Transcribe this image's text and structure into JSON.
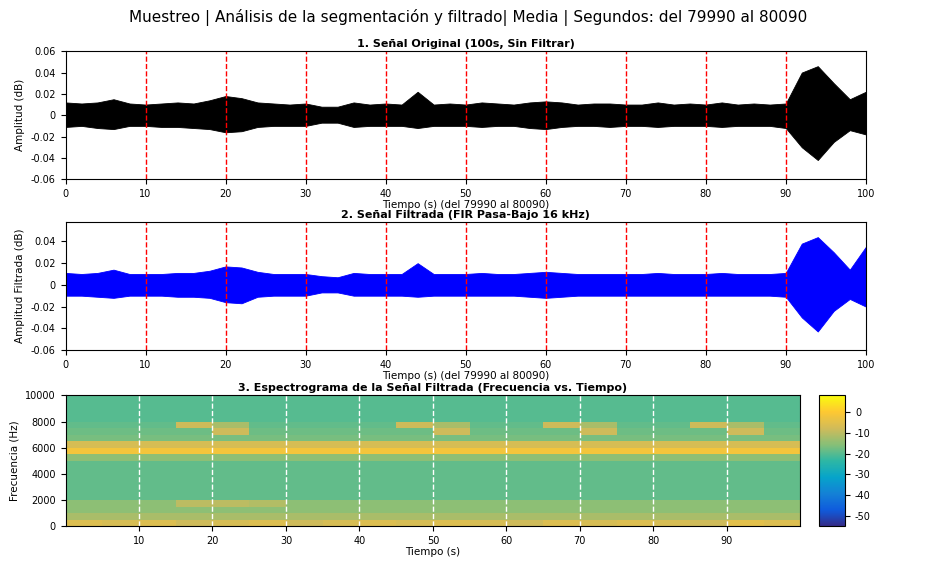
{
  "title": "Muestreo | Análisis de la segmentación y filtrado| Media | Segundos: del 79990 al 80090",
  "chart_data": [
    {
      "type": "area",
      "title": "1. Señal Original (100s, Sin Filtrar)",
      "x_label": "Tiempo (s) (del 79990 al 80090)",
      "y_label": "Amplitud (dB)",
      "color": "#000000",
      "x": [
        0,
        2,
        4,
        6,
        8,
        10,
        12,
        14,
        16,
        18,
        20,
        22,
        24,
        26,
        28,
        30,
        32,
        34,
        36,
        38,
        40,
        42,
        44,
        46,
        48,
        50,
        52,
        54,
        56,
        58,
        60,
        62,
        64,
        66,
        68,
        70,
        72,
        74,
        76,
        78,
        80,
        82,
        84,
        86,
        88,
        90,
        92,
        94,
        96,
        98,
        100
      ],
      "upper": [
        0.012,
        0.011,
        0.012,
        0.015,
        0.011,
        0.01,
        0.011,
        0.012,
        0.011,
        0.014,
        0.018,
        0.016,
        0.012,
        0.011,
        0.01,
        0.011,
        0.008,
        0.008,
        0.012,
        0.01,
        0.011,
        0.01,
        0.022,
        0.01,
        0.011,
        0.01,
        0.012,
        0.011,
        0.01,
        0.012,
        0.013,
        0.012,
        0.01,
        0.011,
        0.011,
        0.01,
        0.01,
        0.012,
        0.01,
        0.011,
        0.01,
        0.012,
        0.01,
        0.011,
        0.01,
        0.011,
        0.04,
        0.046,
        0.03,
        0.015,
        0.022
      ],
      "lower": [
        -0.011,
        -0.01,
        -0.012,
        -0.013,
        -0.01,
        -0.01,
        -0.011,
        -0.011,
        -0.012,
        -0.013,
        -0.016,
        -0.015,
        -0.011,
        -0.01,
        -0.01,
        -0.01,
        -0.007,
        -0.007,
        -0.011,
        -0.01,
        -0.01,
        -0.01,
        -0.012,
        -0.01,
        -0.01,
        -0.01,
        -0.011,
        -0.01,
        -0.01,
        -0.012,
        -0.013,
        -0.011,
        -0.01,
        -0.01,
        -0.011,
        -0.01,
        -0.01,
        -0.011,
        -0.01,
        -0.01,
        -0.01,
        -0.011,
        -0.01,
        -0.01,
        -0.01,
        -0.012,
        -0.03,
        -0.042,
        -0.025,
        -0.014,
        -0.018
      ],
      "segments": [
        10,
        20,
        30,
        40,
        50,
        60,
        70,
        80,
        90
      ],
      "xlim": [
        0,
        100
      ],
      "xticks": [
        0,
        10,
        20,
        30,
        40,
        50,
        60,
        70,
        80,
        90,
        100
      ],
      "ylim": [
        -0.06,
        0.06
      ],
      "yticks": [
        -0.06,
        -0.04,
        -0.02,
        0,
        0.02,
        0.04,
        0.06
      ]
    },
    {
      "type": "area",
      "title": "2. Señal Filtrada (FIR Pasa-Bajo 16 kHz)",
      "x_label": "Tiempo (s) (del 79990 al 80090)",
      "y_label": "Amplitud Filtrada (dB)",
      "color": "#0000ff",
      "x": [
        0,
        2,
        4,
        6,
        8,
        10,
        12,
        14,
        16,
        18,
        20,
        22,
        24,
        26,
        28,
        30,
        32,
        34,
        36,
        38,
        40,
        42,
        44,
        46,
        48,
        50,
        52,
        54,
        56,
        58,
        60,
        62,
        64,
        66,
        68,
        70,
        72,
        74,
        76,
        78,
        80,
        82,
        84,
        86,
        88,
        90,
        92,
        94,
        96,
        98,
        100
      ],
      "upper": [
        0.011,
        0.01,
        0.011,
        0.014,
        0.01,
        0.01,
        0.01,
        0.011,
        0.011,
        0.013,
        0.017,
        0.016,
        0.012,
        0.01,
        0.01,
        0.01,
        0.008,
        0.007,
        0.011,
        0.01,
        0.01,
        0.01,
        0.02,
        0.01,
        0.01,
        0.01,
        0.011,
        0.01,
        0.01,
        0.011,
        0.012,
        0.011,
        0.01,
        0.01,
        0.01,
        0.01,
        0.01,
        0.011,
        0.01,
        0.01,
        0.01,
        0.011,
        0.01,
        0.01,
        0.01,
        0.011,
        0.038,
        0.044,
        0.03,
        0.014,
        0.035
      ],
      "lower": [
        -0.01,
        -0.01,
        -0.011,
        -0.012,
        -0.01,
        -0.01,
        -0.01,
        -0.011,
        -0.011,
        -0.012,
        -0.016,
        -0.017,
        -0.011,
        -0.01,
        -0.01,
        -0.01,
        -0.007,
        -0.007,
        -0.01,
        -0.01,
        -0.01,
        -0.01,
        -0.011,
        -0.01,
        -0.01,
        -0.01,
        -0.01,
        -0.01,
        -0.01,
        -0.011,
        -0.012,
        -0.011,
        -0.01,
        -0.01,
        -0.01,
        -0.01,
        -0.01,
        -0.01,
        -0.01,
        -0.01,
        -0.01,
        -0.01,
        -0.01,
        -0.01,
        -0.01,
        -0.011,
        -0.03,
        -0.043,
        -0.024,
        -0.013,
        -0.02
      ],
      "segments": [
        10,
        20,
        30,
        40,
        50,
        60,
        70,
        80,
        90
      ],
      "xlim": [
        0,
        100
      ],
      "xticks": [
        0,
        10,
        20,
        30,
        40,
        50,
        60,
        70,
        80,
        90,
        100
      ],
      "ylim": [
        -0.06,
        0.058
      ],
      "yticks": [
        -0.06,
        -0.04,
        -0.02,
        0,
        0.02,
        0.04
      ]
    },
    {
      "type": "heatmap",
      "title": "3. Espectrograma de la Señal Filtrada (Frecuencia vs. Tiempo)",
      "x_label": "Tiempo (s)",
      "y_label": "Frecuencia (Hz)",
      "time_edges": [
        0,
        5,
        10,
        15,
        20,
        25,
        30,
        35,
        40,
        45,
        50,
        55,
        60,
        65,
        70,
        75,
        80,
        85,
        90,
        95,
        100
      ],
      "freq_edges": [
        0,
        500,
        1000,
        1500,
        2000,
        2500,
        3000,
        3500,
        4000,
        4500,
        5000,
        5500,
        6000,
        6500,
        7000,
        7500,
        8000,
        8500,
        9000,
        9500,
        10000
      ],
      "cells": [
        [
          -6,
          -7,
          -6,
          -8,
          -7,
          -6,
          -8,
          -7,
          -6,
          -7,
          -6,
          -7,
          -8,
          -6,
          -7,
          -6,
          -7,
          -8,
          -5,
          -6
        ],
        [
          -12,
          -12,
          -12,
          -12,
          -12,
          -12,
          -12,
          -12,
          -12,
          -12,
          -12,
          -12,
          -12,
          -12,
          -12,
          -12,
          -12,
          -12,
          -12,
          -12
        ],
        [
          -15,
          -15,
          -15,
          -15,
          -15,
          -15,
          -15,
          -15,
          -15,
          -15,
          -15,
          -15,
          -15,
          -15,
          -15,
          -15,
          -15,
          -15,
          -15,
          -15
        ],
        [
          -15,
          -15,
          -15,
          -10,
          -10,
          -11,
          -15,
          -15,
          -15,
          -15,
          -15,
          -15,
          -15,
          -15,
          -15,
          -15,
          -15,
          -15,
          -15,
          -15
        ],
        [
          -19,
          -19,
          -19,
          -19,
          -19,
          -19,
          -19,
          -19,
          -19,
          -19,
          -19,
          -19,
          -19,
          -19,
          -19,
          -19,
          -19,
          -19,
          -19,
          -19
        ],
        [
          -19,
          -19,
          -19,
          -19,
          -19,
          -19,
          -19,
          -19,
          -19,
          -19,
          -19,
          -19,
          -19,
          -19,
          -19,
          -19,
          -19,
          -19,
          -19,
          -19
        ],
        [
          -19,
          -19,
          -19,
          -19,
          -19,
          -19,
          -19,
          -19,
          -19,
          -19,
          -19,
          -19,
          -19,
          -19,
          -19,
          -19,
          -19,
          -19,
          -19,
          -19
        ],
        [
          -19,
          -19,
          -19,
          -19,
          -19,
          -19,
          -19,
          -19,
          -19,
          -19,
          -19,
          -19,
          -19,
          -19,
          -19,
          -19,
          -19,
          -19,
          -19,
          -19
        ],
        [
          -19,
          -19,
          -19,
          -19,
          -19,
          -19,
          -19,
          -19,
          -19,
          -19,
          -19,
          -19,
          -19,
          -19,
          -19,
          -19,
          -19,
          -19,
          -19,
          -19
        ],
        [
          -19,
          -19,
          -19,
          -19,
          -19,
          -19,
          -19,
          -19,
          -19,
          -19,
          -19,
          -19,
          -19,
          -19,
          -19,
          -19,
          -19,
          -19,
          -19,
          -19
        ],
        [
          -15,
          -15,
          -15,
          -15,
          -15,
          -15,
          -15,
          -15,
          -15,
          -15,
          -15,
          -15,
          -15,
          -15,
          -15,
          -15,
          -15,
          -15,
          -15,
          -15
        ],
        [
          -2,
          -2,
          -2,
          -2,
          -2,
          -2,
          -2,
          -2,
          -2,
          -2,
          -2,
          -2,
          -2,
          -2,
          -2,
          -2,
          -2,
          -2,
          -2,
          -2
        ],
        [
          -7,
          -7,
          -7,
          -7,
          -7,
          -7,
          -7,
          -7,
          -7,
          -7,
          -7,
          -7,
          -7,
          -7,
          -7,
          -7,
          -7,
          -7,
          -7,
          -7
        ],
        [
          -17,
          -17,
          -17,
          -17,
          -17,
          -17,
          -17,
          -17,
          -17,
          -17,
          -17,
          -17,
          -17,
          -17,
          -17,
          -17,
          -17,
          -17,
          -17,
          -17
        ],
        [
          -18,
          -18,
          -18,
          -18,
          -8,
          -18,
          -18,
          -18,
          -18,
          -18,
          -8,
          -18,
          -18,
          -18,
          -8,
          -18,
          -18,
          -18,
          -8,
          -18
        ],
        [
          -19,
          -19,
          -19,
          -8,
          -12,
          -19,
          -19,
          -19,
          -19,
          -8,
          -12,
          -19,
          -19,
          -8,
          -12,
          -19,
          -19,
          -8,
          -12,
          -19
        ],
        [
          -20,
          -20,
          -20,
          -20,
          -20,
          -20,
          -20,
          -20,
          -20,
          -20,
          -20,
          -20,
          -20,
          -20,
          -20,
          -20,
          -20,
          -20,
          -20,
          -20
        ],
        [
          -20,
          -20,
          -20,
          -20,
          -20,
          -20,
          -20,
          -20,
          -20,
          -20,
          -20,
          -20,
          -20,
          -20,
          -20,
          -20,
          -20,
          -20,
          -20,
          -20
        ],
        [
          -20,
          -20,
          -20,
          -20,
          -20,
          -20,
          -20,
          -20,
          -20,
          -20,
          -20,
          -20,
          -20,
          -20,
          -20,
          -20,
          -20,
          -20,
          -20,
          -20
        ],
        [
          -20,
          -20,
          -20,
          -20,
          -20,
          -20,
          -20,
          -20,
          -20,
          -20,
          -20,
          -20,
          -20,
          -20,
          -20,
          -20,
          -20,
          -20,
          -20,
          -20
        ]
      ],
      "segments": [
        10,
        20,
        30,
        40,
        50,
        60,
        70,
        80,
        90
      ],
      "xlim": [
        0,
        100
      ],
      "xticks": [
        10,
        20,
        30,
        40,
        50,
        60,
        70,
        80,
        90
      ],
      "ylim": [
        0,
        10000
      ],
      "yticks": [
        0,
        2000,
        4000,
        6000,
        8000,
        10000
      ],
      "clim": [
        -55,
        8
      ],
      "cticks": [
        -50,
        -40,
        -30,
        -20,
        -10,
        0
      ]
    }
  ]
}
